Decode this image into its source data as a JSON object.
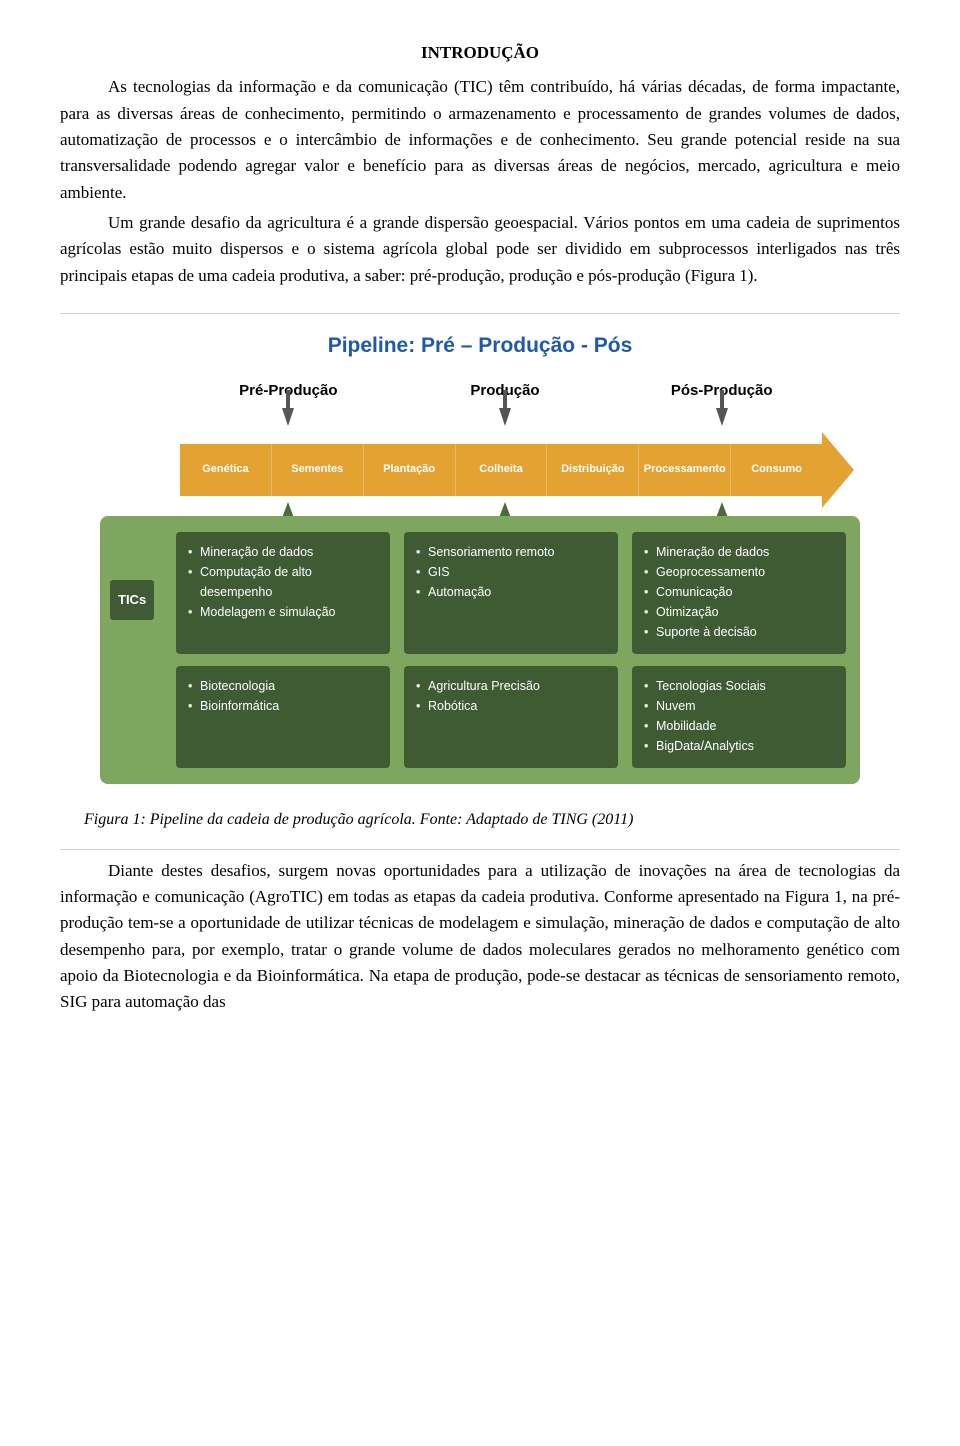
{
  "section_title": "INTRODUÇÃO",
  "para1": "As tecnologias da informação e da comunicação (TIC) têm contribuído, há várias décadas, de forma impactante, para as diversas áreas de conhecimento, permitindo o armazenamento e processamento de grandes volumes de dados, automatização de processos e o intercâmbio de informações e de conhecimento. Seu grande potencial reside na sua transversalidade podendo agregar valor e benefício para as diversas áreas de negócios, mercado, agricultura e meio ambiente.",
  "para2": "Um grande desafio da agricultura é a grande dispersão geoespacial. Vários pontos em uma cadeia de suprimentos agrícolas estão muito dispersos e o sistema agrícola global pode ser dividido em subprocessos interligados nas três principais etapas de uma cadeia produtiva, a saber: pré-produção, produção e pós-produção (Figura 1).",
  "diagram": {
    "title": "Pipeline: Pré – Produção - Pós",
    "title_color": "#1f5aa8",
    "panel_bg": "#7fa65e",
    "box_bg": "#3e5b34",
    "box_text": "#ffffff",
    "side_label": "TICs",
    "side_label_bg": "#3e5b34",
    "side_label_text": "#ffffff",
    "phase_labels": [
      "Pré-Produção",
      "Produção",
      "Pós-Produção"
    ],
    "arrow_color": "#e4a233",
    "arrow_segments": [
      "Genética",
      "Sementes",
      "Plantação",
      "Colheita",
      "Distribuição",
      "Processamento",
      "Consumo"
    ],
    "row1": {
      "col1": [
        "Mineração de dados",
        "Computação de alto desempenho",
        "Modelagem e simulação"
      ],
      "col2": [
        "Sensoriamento remoto",
        "GIS",
        "Automação"
      ],
      "col3": [
        "Mineração de dados",
        "Geoprocessamento",
        "Comunicação",
        "Otimização",
        "Suporte à decisão"
      ]
    },
    "row2": {
      "col1": [
        "Biotecnologia",
        "Bioinformática"
      ],
      "col2": [
        "Agricultura Precisão",
        "Robótica"
      ],
      "col3": [
        "Tecnologias Sociais",
        "Nuvem",
        "Mobilidade",
        "BigData/Analytics"
      ]
    }
  },
  "caption": "Figura 1: Pipeline da cadeia de produção agrícola. Fonte: Adaptado de TING (2011)",
  "para3": "Diante destes desafios, surgem novas oportunidades para a utilização de inovações na área de tecnologias da informação e comunicação (AgroTIC) em todas as etapas da cadeia produtiva. Conforme apresentado na Figura 1, na pré-produção tem-se a oportunidade de utilizar técnicas de modelagem e simulação, mineração de dados e computação de alto desempenho para, por exemplo, tratar o grande volume de dados moleculares gerados no melhoramento genético com apoio da Biotecnologia e da Bioinformática. Na etapa de produção, pode-se destacar as técnicas de sensoriamento remoto, SIG para automação das"
}
